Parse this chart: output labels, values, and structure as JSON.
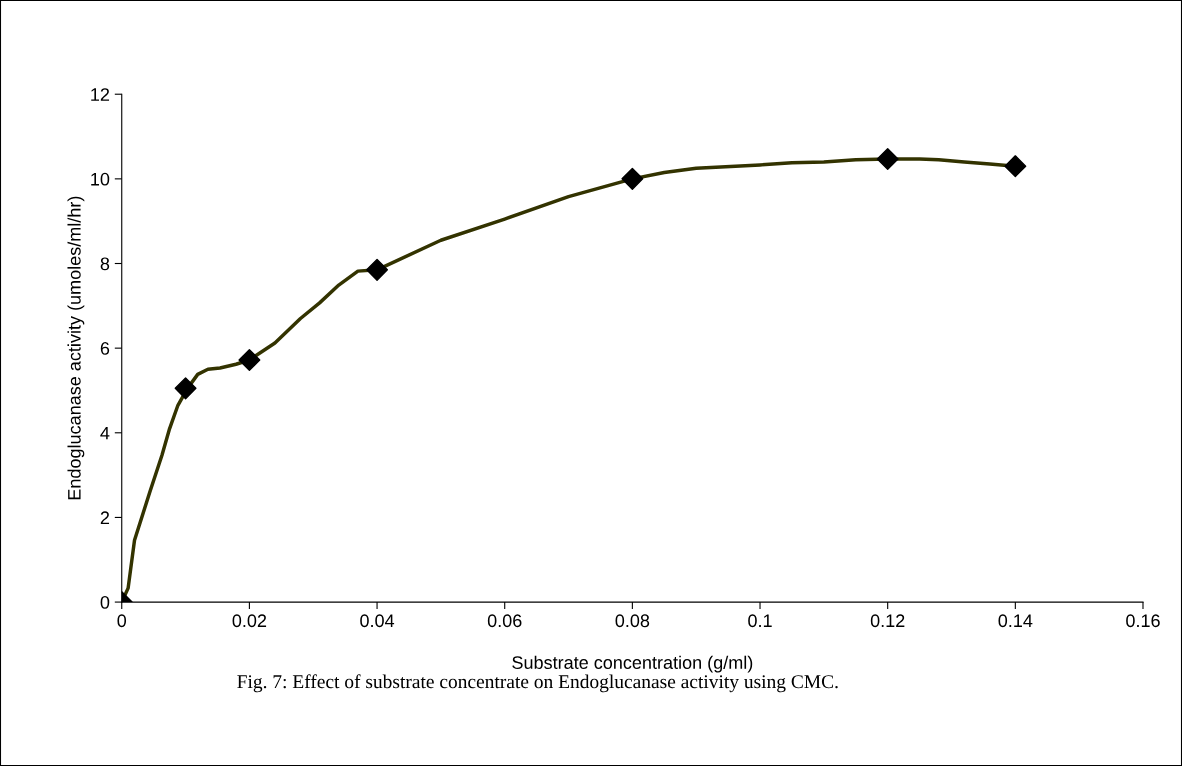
{
  "chart_data": {
    "type": "line",
    "xlabel": "Substrate concentration (g/ml)",
    "ylabel": "Endoglucanase activity (umoles/ml/hr)",
    "annotations": [
      "Fig. 7: Effect of substrate concentrate on Endoglucanase activity using CMC."
    ],
    "xlim": [
      0,
      0.16
    ],
    "xticks": [
      0,
      0.02,
      0.04,
      0.06,
      0.08,
      0.1,
      0.12,
      0.14,
      0.16
    ],
    "ylim": [
      0,
      12
    ],
    "yticks": [
      0,
      2,
      4,
      6,
      8,
      10,
      12
    ],
    "grid": false,
    "legend": false,
    "series": [
      {
        "color": "#333300",
        "marker": "none",
        "x": [
          0,
          0.001,
          0.002,
          0.0044,
          0.0063,
          0.0075,
          0.0088,
          0.0103,
          0.0119,
          0.0135,
          0.0154,
          0.0179,
          0.02,
          0.024,
          0.028,
          0.031,
          0.034,
          0.037,
          0.04,
          0.05,
          0.06,
          0.07,
          0.08,
          0.085,
          0.09,
          0.1,
          0.105,
          0.11,
          0.115,
          0.12,
          0.125,
          0.128,
          0.132,
          0.136,
          0.14
        ],
        "values": [
          0,
          0.33,
          1.46,
          2.6,
          3.47,
          4.1,
          4.65,
          5.05,
          5.38,
          5.5,
          5.53,
          5.62,
          5.72,
          6.12,
          6.7,
          7.07,
          7.49,
          7.82,
          7.85,
          8.55,
          9.05,
          9.58,
          10.0,
          10.15,
          10.25,
          10.33,
          10.38,
          10.4,
          10.45,
          10.47,
          10.47,
          10.45,
          10.4,
          10.35,
          10.3
        ]
      },
      {
        "type": "scatter",
        "color": "#000000",
        "marker": "diamond",
        "x": [
          0,
          0.01,
          0.02,
          0.04,
          0.08,
          0.12,
          0.14
        ],
        "values": [
          0,
          5.05,
          5.72,
          7.85,
          10.0,
          10.47,
          10.3
        ]
      }
    ]
  }
}
